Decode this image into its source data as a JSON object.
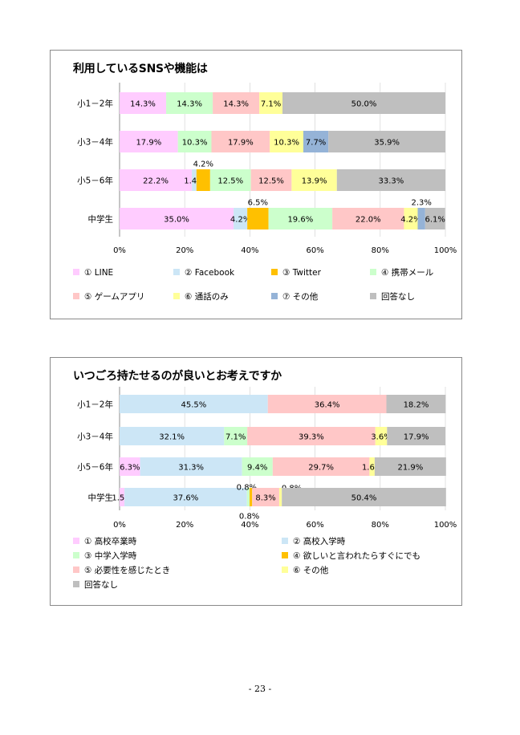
{
  "page": {
    "number_label": "- 23 -"
  },
  "chart_data": [
    {
      "type": "bar",
      "orientation": "horizontal-stacked-100",
      "title": "利用しているSNSや機能は",
      "categories": [
        "小1－2年",
        "小3－4年",
        "小5－6年",
        "中学生"
      ],
      "x_ticks": [
        "0%",
        "20%",
        "40%",
        "60%",
        "80%",
        "100%"
      ],
      "xlim": [
        0,
        100
      ],
      "legend_position": "bottom",
      "series": [
        {
          "name": "① LINE",
          "color": "#ffccff",
          "values": [
            14.3,
            17.9,
            22.2,
            35.0
          ]
        },
        {
          "name": "② Facebook",
          "color": "#cce6f6",
          "values": [
            0,
            0,
            1.4,
            4.2
          ]
        },
        {
          "name": "③ Twitter",
          "color": "#ffc000",
          "values": [
            0,
            0,
            4.2,
            6.5
          ]
        },
        {
          "name": "④ 携帯メール",
          "color": "#ccffcc",
          "values": [
            14.3,
            10.3,
            12.5,
            19.6
          ]
        },
        {
          "name": "⑤ ゲームアプリ",
          "color": "#ffc7c7",
          "values": [
            14.3,
            17.9,
            12.5,
            22.0
          ]
        },
        {
          "name": "⑥ 通話のみ",
          "color": "#ffff99",
          "values": [
            7.1,
            10.3,
            13.9,
            4.2
          ]
        },
        {
          "name": "⑦ その他",
          "color": "#95b3d7",
          "values": [
            0,
            7.7,
            0,
            2.3
          ]
        },
        {
          "name": "回答なし",
          "color": "#bfbfbf",
          "values": [
            50.0,
            35.9,
            33.3,
            6.1
          ]
        }
      ],
      "data_labels": [
        [
          "14.3%",
          "",
          "",
          "14.3%",
          "14.3%",
          "7.1%",
          "",
          "50.0%"
        ],
        [
          "17.9%",
          "",
          "",
          "10.3%",
          "17.9%",
          "10.3%",
          "7.7%",
          "35.9%"
        ],
        [
          "22.2%",
          "1.4%",
          "4.2%",
          "12.5%",
          "12.5%",
          "13.9%",
          "",
          "33.3%"
        ],
        [
          "35.0%",
          "4.2%",
          "6.5%",
          "19.6%",
          "22.0%",
          "4.2%",
          "2.3%",
          "6.1%"
        ]
      ]
    },
    {
      "type": "bar",
      "orientation": "horizontal-stacked-100",
      "title": "いつごろ持たせるのが良いとお考えですか",
      "categories": [
        "小1－2年",
        "小3－4年",
        "小5－6年",
        "中学生"
      ],
      "x_ticks": [
        "0%",
        "20%",
        "40%",
        "60%",
        "80%",
        "100%"
      ],
      "xlim": [
        0,
        100
      ],
      "legend_position": "bottom",
      "series": [
        {
          "name": "① 高校卒業時",
          "color": "#ffccff",
          "values": [
            0,
            0,
            6.3,
            1.5
          ]
        },
        {
          "name": "② 高校入学時",
          "color": "#cce6f6",
          "values": [
            45.5,
            32.1,
            31.3,
            37.6
          ]
        },
        {
          "name": "③ 中学入学時",
          "color": "#ccffcc",
          "values": [
            0,
            7.1,
            9.4,
            0.8
          ]
        },
        {
          "name": "④ 欲しいと言われたらすぐにでも",
          "color": "#ffc000",
          "values": [
            0,
            0,
            0,
            0.8
          ]
        },
        {
          "name": "⑤ 必要性を感じたとき",
          "color": "#ffc7c7",
          "values": [
            36.4,
            39.3,
            29.7,
            8.3
          ]
        },
        {
          "name": "⑥ その他",
          "color": "#ffff99",
          "values": [
            0,
            3.6,
            1.6,
            0.8
          ]
        },
        {
          "name": "回答なし",
          "color": "#bfbfbf",
          "values": [
            18.2,
            17.9,
            21.9,
            50.4
          ]
        }
      ],
      "data_labels": [
        [
          "",
          "45.5%",
          "",
          "",
          "36.4%",
          "",
          "18.2%"
        ],
        [
          "",
          "32.1%",
          "7.1%",
          "",
          "39.3%",
          "3.6%",
          "17.9%"
        ],
        [
          "6.3%",
          "31.3%",
          "9.4%",
          "",
          "29.7%",
          "1.6%",
          "21.9%"
        ],
        [
          "1.5%",
          "37.6%",
          "0.8%",
          "0.8%",
          "8.3%",
          "0.8%",
          "50.4%"
        ]
      ]
    }
  ]
}
